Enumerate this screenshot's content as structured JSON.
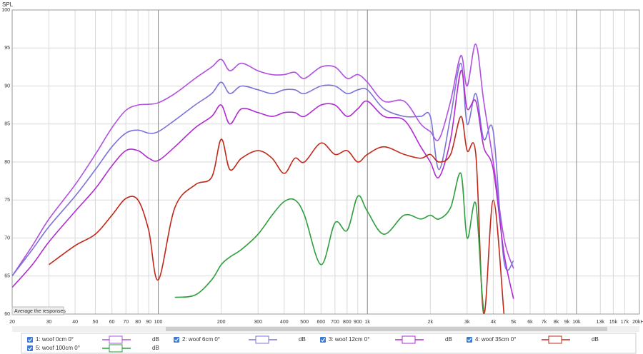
{
  "chart_data": {
    "type": "line",
    "y_label": "SPL",
    "button": "Average the responses",
    "unit": "dB",
    "log_x": true,
    "grid": true,
    "xlim": [
      20,
      20000
    ],
    "ylim": [
      60,
      100
    ],
    "yticks": [
      60,
      65,
      70,
      75,
      80,
      85,
      90,
      95,
      100
    ],
    "xticks": [
      20,
      30,
      40,
      50,
      60,
      70,
      80,
      90,
      100,
      200,
      300,
      400,
      500,
      600,
      700,
      800,
      900,
      {
        "value": 1000,
        "label": "1k"
      },
      {
        "value": 2000,
        "label": "2k"
      },
      {
        "value": 3000,
        "label": "3k"
      },
      {
        "value": 4000,
        "label": "4k"
      },
      {
        "value": 5000,
        "label": "5k"
      },
      {
        "value": 6000,
        "label": "6k"
      },
      {
        "value": 7000,
        "label": "7k"
      },
      {
        "value": 8000,
        "label": "8k"
      },
      {
        "value": 9000,
        "label": "9k"
      },
      {
        "value": 10000,
        "label": "10k"
      },
      {
        "value": 13000,
        "label": "13k"
      },
      {
        "value": 15000,
        "label": "15k"
      },
      {
        "value": 17000,
        "label": "17k"
      },
      {
        "value": 20000,
        "label": "20kHz"
      }
    ],
    "x": [
      20,
      25,
      30,
      40,
      50,
      60,
      70,
      80,
      90,
      100,
      120,
      150,
      180,
      200,
      220,
      250,
      300,
      350,
      400,
      450,
      500,
      600,
      700,
      800,
      900,
      1000,
      1200,
      1500,
      1800,
      2000,
      2200,
      2500,
      2800,
      3000,
      3300,
      3600,
      4000,
      4500,
      5000
    ],
    "series": [
      {
        "name": "1: woof 0cm 0°",
        "color": "#b050e0",
        "values": [
          65,
          69,
          72.5,
          77,
          81,
          84.5,
          86.8,
          87.5,
          87.6,
          87.8,
          89,
          91,
          92.5,
          93.5,
          92,
          93,
          92,
          91.5,
          91.5,
          91.8,
          91,
          92.5,
          92.5,
          91,
          91.5,
          90.5,
          88,
          88,
          85,
          84,
          83,
          88,
          94,
          90,
          95.5,
          88,
          80,
          70,
          66
        ]
      },
      {
        "name": "2: woof 6cm 0°",
        "color": "#7b74d8",
        "values": [
          65,
          68.5,
          71.5,
          75.5,
          79,
          82,
          83.8,
          84.2,
          83.8,
          84,
          85.5,
          87.5,
          89,
          90.5,
          89,
          90,
          89.5,
          89,
          89.5,
          89.5,
          89,
          90,
          90,
          89,
          89.5,
          89.5,
          87,
          86,
          86,
          86,
          79,
          86,
          93,
          85,
          89,
          83,
          84,
          67,
          67
        ]
      },
      {
        "name": "3: woof 12cm 0°",
        "color": "#b02cd0",
        "values": [
          63.5,
          66.5,
          69.5,
          73.5,
          76.5,
          79.5,
          81.5,
          81.5,
          80.5,
          80.2,
          82,
          84.5,
          86,
          87.5,
          85,
          87,
          86.5,
          86,
          86.5,
          86.5,
          86,
          87.5,
          87.5,
          86,
          87,
          88,
          86,
          85.5,
          82,
          80,
          78,
          83,
          92,
          87,
          88,
          82,
          79,
          68,
          62
        ]
      },
      {
        "name": "4: woof 35cm 0°",
        "color": "#c0281a",
        "values": [
          null,
          null,
          66.5,
          69,
          70.5,
          73,
          75.2,
          75,
          71,
          64.5,
          74,
          77,
          78,
          83,
          79,
          80.5,
          81.5,
          80.5,
          78.5,
          80.5,
          80,
          82.5,
          81,
          81.5,
          80,
          81,
          82,
          81,
          80.5,
          81,
          80,
          81,
          86,
          81.5,
          81,
          60,
          75,
          60,
          null
        ]
      },
      {
        "name": "5: woof 100cm 0°",
        "color": "#2e9e3e",
        "values": [
          null,
          null,
          null,
          null,
          null,
          null,
          null,
          null,
          null,
          null,
          62.2,
          62.5,
          64.5,
          66.5,
          67.5,
          68.5,
          70.5,
          73,
          74.8,
          75,
          73,
          66.5,
          72,
          71,
          75.5,
          73.5,
          70.5,
          73,
          72.5,
          73,
          72.5,
          74,
          78.5,
          70,
          74.5,
          60.5,
          60,
          null,
          null
        ]
      }
    ]
  }
}
